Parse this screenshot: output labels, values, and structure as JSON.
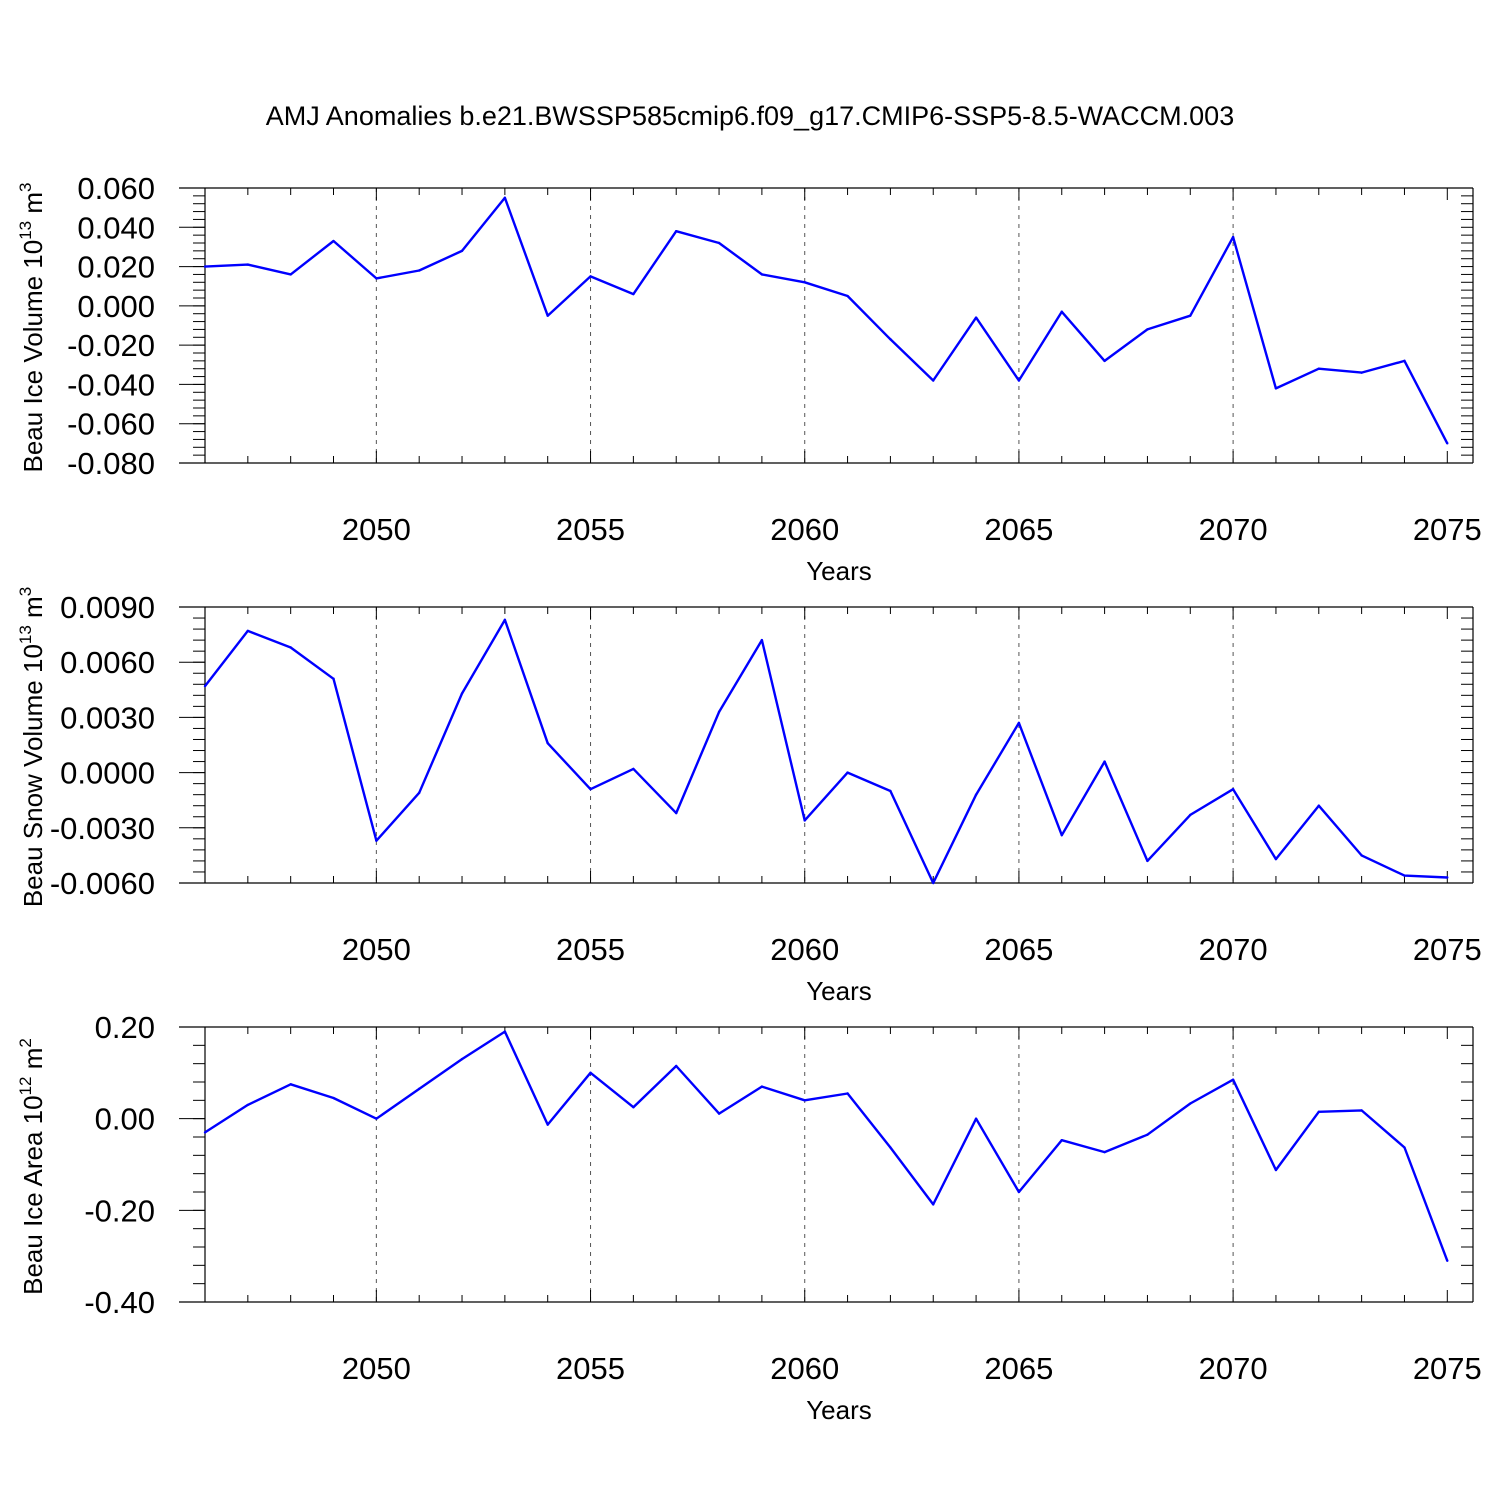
{
  "title": "AMJ Anomalies b.e21.BWSSP585cmip6.f09_g17.CMIP6-SSP5-8.5-WACCM.003",
  "colors": {
    "line": "#0000ff",
    "axis": "#000000",
    "grid": "#555555"
  },
  "chart_data": [
    {
      "type": "line",
      "ylabel": "Beau Ice Volume 10",
      "ylabel_exp": "13",
      "ylabel_unit": " m",
      "ylabel_unit_exp": "3",
      "xlabel": "Years",
      "xlim": [
        2046,
        2075
      ],
      "ylim": [
        -0.08,
        0.06
      ],
      "yticks": [
        0.06,
        0.04,
        0.02,
        0.0,
        -0.02,
        -0.04,
        -0.06,
        -0.08
      ],
      "ytick_labels": [
        "0.060",
        "0.040",
        "0.020",
        "0.000",
        "-0.020",
        "-0.040",
        "-0.060",
        "-0.080"
      ],
      "xticks": [
        2050,
        2055,
        2060,
        2065,
        2070,
        2075
      ],
      "xtick_labels": [
        "2050",
        "2055",
        "2060",
        "2065",
        "2070",
        "2075"
      ],
      "grid": "vertical dashed at major x ticks",
      "x": [
        2046,
        2047,
        2048,
        2049,
        2050,
        2051,
        2052,
        2053,
        2054,
        2055,
        2056,
        2057,
        2058,
        2059,
        2060,
        2061,
        2062,
        2063,
        2064,
        2065,
        2066,
        2067,
        2068,
        2069,
        2070,
        2071,
        2072,
        2073,
        2074,
        2075
      ],
      "y": [
        0.02,
        0.021,
        0.016,
        0.033,
        0.014,
        0.018,
        0.028,
        0.055,
        -0.005,
        0.015,
        0.006,
        0.038,
        0.032,
        0.016,
        0.012,
        0.005,
        -0.017,
        -0.038,
        -0.006,
        -0.038,
        -0.003,
        -0.028,
        -0.012,
        -0.005,
        0.035,
        -0.042,
        -0.032,
        -0.034,
        -0.028,
        -0.07
      ]
    },
    {
      "type": "line",
      "ylabel": "Beau Snow Volume 10",
      "ylabel_exp": "13",
      "ylabel_unit": " m",
      "ylabel_unit_exp": "3",
      "xlabel": "Years",
      "xlim": [
        2046,
        2075
      ],
      "ylim": [
        -0.006,
        0.009
      ],
      "yticks": [
        0.009,
        0.006,
        0.003,
        0.0,
        -0.003,
        -0.006
      ],
      "ytick_labels": [
        "0.0090",
        "0.0060",
        "0.0030",
        "0.0000",
        "-0.0030",
        "-0.0060"
      ],
      "xticks": [
        2050,
        2055,
        2060,
        2065,
        2070,
        2075
      ],
      "xtick_labels": [
        "2050",
        "2055",
        "2060",
        "2065",
        "2070",
        "2075"
      ],
      "grid": "vertical dashed at major x ticks",
      "x": [
        2046,
        2047,
        2048,
        2049,
        2050,
        2051,
        2052,
        2053,
        2054,
        2055,
        2056,
        2057,
        2058,
        2059,
        2060,
        2061,
        2062,
        2063,
        2064,
        2065,
        2066,
        2067,
        2068,
        2069,
        2070,
        2071,
        2072,
        2073,
        2074,
        2075
      ],
      "y": [
        0.0047,
        0.0077,
        0.0068,
        0.0051,
        -0.0037,
        -0.0011,
        0.0043,
        0.0083,
        0.0016,
        -0.0009,
        0.0002,
        -0.0022,
        0.0033,
        0.0072,
        -0.0026,
        0.0,
        -0.001,
        -0.006,
        -0.0012,
        0.0027,
        -0.0034,
        0.0006,
        -0.0048,
        -0.0023,
        -0.0009,
        -0.0047,
        -0.0018,
        -0.0045,
        -0.0056,
        -0.0057
      ]
    },
    {
      "type": "line",
      "ylabel": "Beau Ice Area 10",
      "ylabel_exp": "12",
      "ylabel_unit": " m",
      "ylabel_unit_exp": "2",
      "xlabel": "Years",
      "xlim": [
        2046,
        2075
      ],
      "ylim": [
        -0.4,
        0.2
      ],
      "yticks": [
        0.2,
        0.0,
        -0.2,
        -0.4
      ],
      "ytick_labels": [
        "0.20",
        "0.00",
        "-0.20",
        "-0.40"
      ],
      "xticks": [
        2050,
        2055,
        2060,
        2065,
        2070,
        2075
      ],
      "xtick_labels": [
        "2050",
        "2055",
        "2060",
        "2065",
        "2070",
        "2075"
      ],
      "grid": "vertical dashed at major x ticks",
      "x": [
        2046,
        2047,
        2048,
        2049,
        2050,
        2051,
        2052,
        2053,
        2054,
        2055,
        2056,
        2057,
        2058,
        2059,
        2060,
        2061,
        2062,
        2063,
        2064,
        2065,
        2066,
        2067,
        2068,
        2069,
        2070,
        2071,
        2072,
        2073,
        2074,
        2075
      ],
      "y": [
        -0.03,
        0.03,
        0.075,
        0.045,
        0.0,
        0.065,
        0.13,
        0.19,
        -0.013,
        0.1,
        0.025,
        0.115,
        0.011,
        0.07,
        0.04,
        0.055,
        -0.063,
        -0.187,
        0.0,
        -0.16,
        -0.047,
        -0.073,
        -0.035,
        0.033,
        0.085,
        -0.112,
        0.015,
        0.018,
        -0.063,
        -0.31
      ]
    }
  ]
}
